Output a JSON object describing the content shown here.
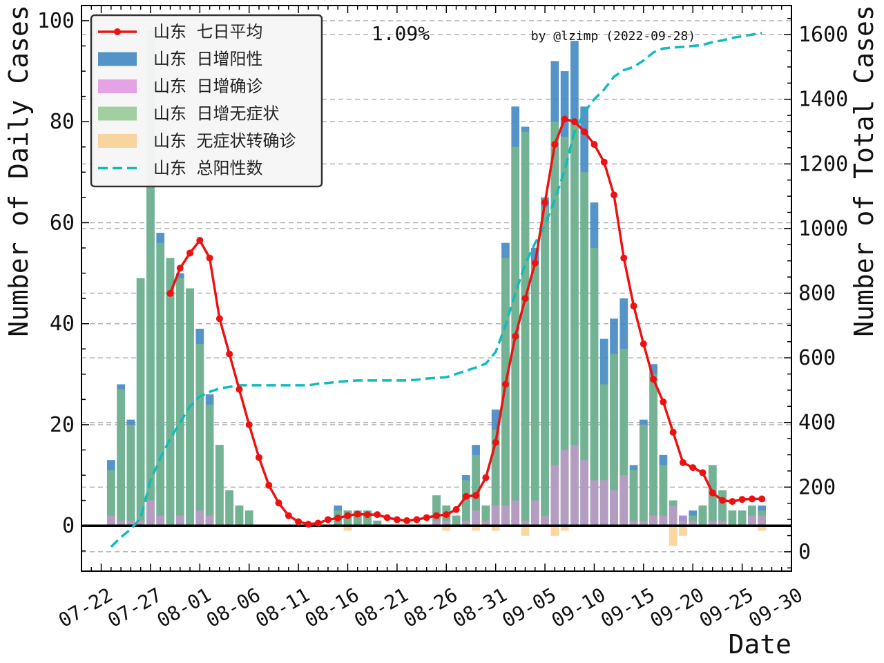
{
  "chart_data": {
    "type": "bar",
    "xlabel": "Date",
    "ylabel_left": "Number of Daily Cases",
    "ylabel_right": "Number of Total Cases",
    "annotation": "1.09%",
    "watermark": "by @lzimp (2022-09-28)",
    "ylim_left": [
      -9,
      103
    ],
    "ylim_right": [
      -60,
      1690
    ],
    "xlim": [
      "07-20",
      "09-30"
    ],
    "x_ticks": [
      "07-22",
      "07-27",
      "08-01",
      "08-06",
      "08-11",
      "08-16",
      "08-21",
      "08-26",
      "08-31",
      "09-05",
      "09-10",
      "09-15",
      "09-20",
      "09-25",
      "09-30"
    ],
    "y_ticks_left": [
      0,
      20,
      40,
      60,
      80,
      100
    ],
    "y_ticks_right": [
      0,
      200,
      400,
      600,
      800,
      1000,
      1200,
      1400,
      1600
    ],
    "grid": "horizontal-dashed",
    "legend_position": "top-left",
    "colors": {
      "positive": "#3d85c0",
      "confirmed": "#e08ee0",
      "asymptomatic": "#7fbf7f",
      "asym_to_confirmed": "#f8c880",
      "avg": "#ee1111",
      "total": "#11bbbb",
      "annotation": "#ee4444"
    },
    "legend": [
      {
        "key": "avg",
        "label": "山东 七日平均"
      },
      {
        "key": "positive",
        "label": "山东 日增阳性"
      },
      {
        "key": "confirmed",
        "label": "山东 日增确诊"
      },
      {
        "key": "asymptomatic",
        "label": "山东 日增无症状"
      },
      {
        "key": "asym_to_confirmed",
        "label": "山东 无症状转确诊"
      },
      {
        "key": "total",
        "label": "山东 总阳性数"
      }
    ],
    "dates": [
      "07-23",
      "07-24",
      "07-25",
      "07-26",
      "07-27",
      "07-28",
      "07-29",
      "07-30",
      "07-31",
      "08-01",
      "08-02",
      "08-03",
      "08-04",
      "08-05",
      "08-06",
      "08-07",
      "08-08",
      "08-09",
      "08-10",
      "08-11",
      "08-12",
      "08-13",
      "08-14",
      "08-15",
      "08-16",
      "08-17",
      "08-18",
      "08-19",
      "08-20",
      "08-21",
      "08-22",
      "08-23",
      "08-24",
      "08-25",
      "08-26",
      "08-27",
      "08-28",
      "08-29",
      "08-30",
      "08-31",
      "09-01",
      "09-02",
      "09-03",
      "09-04",
      "09-05",
      "09-06",
      "09-07",
      "09-08",
      "09-09",
      "09-10",
      "09-11",
      "09-12",
      "09-13",
      "09-14",
      "09-15",
      "09-16",
      "09-17",
      "09-18",
      "09-19",
      "09-20",
      "09-21",
      "09-22",
      "09-23",
      "09-24",
      "09-25",
      "09-26",
      "09-27"
    ],
    "series": [
      {
        "key": "positive",
        "values": [
          13,
          28,
          21,
          49,
          98,
          58,
          53,
          50,
          47,
          39,
          26,
          16,
          7,
          4,
          3,
          0,
          0,
          0,
          0,
          0,
          0,
          0,
          0,
          4,
          3,
          3,
          3,
          1,
          0,
          0,
          0,
          0,
          0,
          6,
          4,
          2,
          10,
          16,
          4,
          23,
          56,
          83,
          79,
          55,
          65,
          92,
          90,
          96,
          83,
          64,
          37,
          41,
          45,
          12,
          21,
          32,
          14,
          5,
          2,
          3,
          4,
          12,
          7,
          3,
          3,
          4,
          4
        ]
      },
      {
        "key": "confirmed",
        "values": [
          2,
          1,
          1,
          1,
          5,
          2,
          0,
          2,
          0,
          3,
          2,
          0,
          0,
          0,
          0,
          0,
          0,
          0,
          0,
          0,
          0,
          0,
          0,
          0,
          0,
          0,
          0,
          0,
          0,
          0,
          0,
          0,
          0,
          1,
          1,
          0,
          1,
          3,
          1,
          4,
          4,
          5,
          1,
          5,
          2,
          12,
          15,
          16,
          13,
          9,
          9,
          7,
          10,
          1,
          1,
          2,
          2,
          4,
          2,
          1,
          0,
          1,
          1,
          0,
          0,
          2,
          2
        ]
      },
      {
        "key": "asymptomatic",
        "values": [
          11,
          27,
          20,
          49,
          98,
          56,
          53,
          49,
          47,
          36,
          24,
          16,
          7,
          4,
          3,
          0,
          0,
          0,
          0,
          0,
          0,
          0,
          0,
          3,
          3,
          3,
          3,
          1,
          0,
          0,
          0,
          0,
          0,
          6,
          4,
          2,
          9,
          14,
          4,
          19,
          53,
          75,
          78,
          52,
          63,
          80,
          77,
          80,
          70,
          55,
          28,
          34,
          35,
          11,
          20,
          30,
          12,
          5,
          1,
          2,
          4,
          12,
          7,
          3,
          3,
          4,
          3
        ]
      },
      {
        "key": "asym_to_confirmed",
        "values": [
          0,
          0,
          0,
          0,
          0,
          0,
          0,
          0,
          0,
          0,
          0,
          0,
          0,
          0,
          0,
          0,
          0,
          0,
          0,
          0,
          0,
          0,
          0,
          0,
          -1,
          0,
          0,
          0,
          0,
          0,
          0,
          0,
          0,
          0,
          -1,
          0,
          0,
          -1,
          0,
          -1,
          0,
          0,
          -2,
          0,
          0,
          -2,
          -1,
          0,
          0,
          0,
          0,
          0,
          0,
          0,
          0,
          0,
          0,
          -4,
          -2,
          0,
          0,
          0,
          0,
          0,
          0,
          0,
          -1
        ]
      },
      {
        "key": "avg",
        "values": [
          null,
          null,
          null,
          null,
          null,
          null,
          46,
          51,
          54,
          56.5,
          53,
          41,
          34,
          27,
          20,
          13.5,
          8,
          4.5,
          2,
          0.8,
          0.3,
          0.5,
          1.2,
          1.5,
          2,
          2.3,
          2.2,
          2.2,
          1.6,
          1.2,
          1,
          1.2,
          1.6,
          2,
          2.2,
          3.2,
          5.8,
          6,
          9.5,
          16.5,
          28,
          37.5,
          45,
          52,
          64,
          75.5,
          80.5,
          80,
          78,
          75.5,
          72,
          65.5,
          53,
          43.5,
          36,
          29,
          24.5,
          18.5,
          12.5,
          11.5,
          10.5,
          6.5,
          5,
          4.8,
          5.2,
          5.3,
          5.3
        ]
      },
      {
        "key": "total",
        "values": [
          15,
          45,
          70,
          105,
          220,
          290,
          350,
          400,
          450,
          480,
          495,
          505,
          510,
          515,
          515,
          515,
          515,
          515,
          515,
          515,
          515,
          520,
          522,
          526,
          528,
          530,
          530,
          530,
          530,
          530,
          530,
          532,
          536,
          538,
          540,
          550,
          560,
          570,
          582,
          618,
          700,
          800,
          890,
          955,
          1010,
          1090,
          1180,
          1300,
          1360,
          1400,
          1430,
          1470,
          1490,
          1500,
          1520,
          1545,
          1557,
          1560,
          1562,
          1565,
          1568,
          1577,
          1582,
          1590,
          1595,
          1600,
          1605
        ]
      }
    ]
  }
}
